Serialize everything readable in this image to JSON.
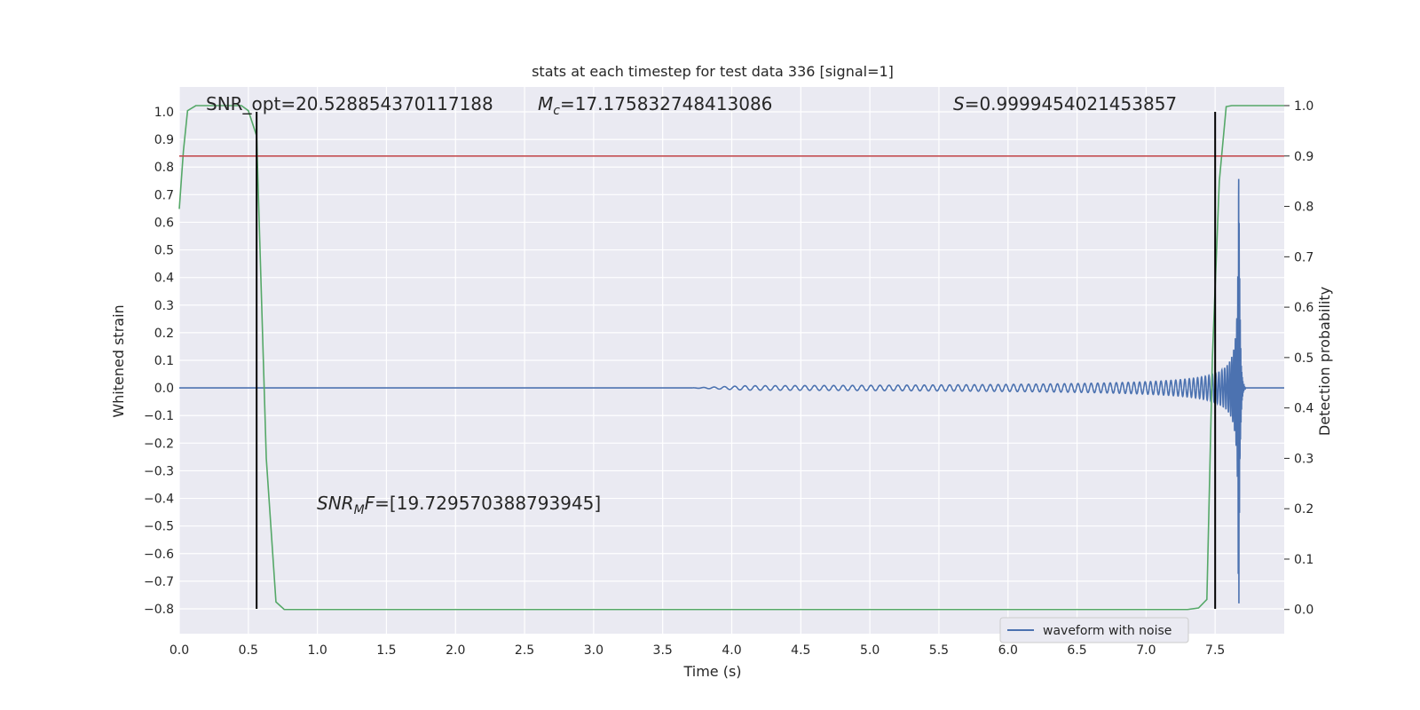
{
  "chart_data": {
    "type": "line",
    "title": "stats at each timestep for test data 336 [signal=1]",
    "xlabel": "Time (s)",
    "ylabel": "Whitened strain",
    "ylabel_right": "Detection probability",
    "xlim": [
      0.0,
      8.0
    ],
    "ylim": [
      -0.89,
      1.09
    ],
    "ylim_right": [
      -0.048,
      1.037
    ],
    "x_ticks": [
      "0.0",
      "0.5",
      "1.0",
      "1.5",
      "2.0",
      "2.5",
      "3.0",
      "3.5",
      "4.0",
      "4.5",
      "5.0",
      "5.5",
      "6.0",
      "6.5",
      "7.0",
      "7.5"
    ],
    "y_ticks": [
      "1.0",
      "0.9",
      "0.8",
      "0.7",
      "0.6",
      "0.5",
      "0.4",
      "0.3",
      "0.2",
      "0.1",
      "0.0",
      "−0.1",
      "−0.2",
      "−0.3",
      "−0.4",
      "−0.5",
      "−0.6",
      "−0.7",
      "−0.8"
    ],
    "y_ticks_right": [
      "1.0",
      "0.9",
      "0.8",
      "0.7",
      "0.6",
      "0.5",
      "0.4",
      "0.3",
      "0.2",
      "0.1",
      "0.0"
    ],
    "grid": true,
    "legend": {
      "position": "bottom-right",
      "entries": [
        "waveform with noise"
      ]
    },
    "annotations": {
      "snr_opt": "SNR_opt=20.528854370117188",
      "mc_symbol": "M",
      "mc_sub": "c",
      "mc_value": "=17.175832748413086",
      "s_symbol": "S",
      "s_value": "=0.9999454021453857",
      "snr_mf_symbol": "SNR",
      "snr_mf_sub": "M",
      "snr_mf_tail": "F",
      "snr_mf_value": "=[19.729570388793945]"
    },
    "series": [
      {
        "name": "waveform with noise",
        "axis": "left",
        "color": "#4c72b0",
        "model": "chirp",
        "chirp": {
          "t_start": 3.7,
          "t_merger": 7.67,
          "t_ringdown_end": 7.72,
          "peak_amp": 1.0
        }
      },
      {
        "axis": "right",
        "color": "#55a868",
        "x": [
          0.0,
          0.03,
          0.06,
          0.12,
          0.2,
          0.3,
          0.4,
          0.45,
          0.5,
          0.56,
          0.63,
          0.7,
          0.76,
          0.85,
          7.3,
          7.38,
          7.44,
          7.48,
          7.53,
          7.58,
          7.62,
          8.0
        ],
        "y": [
          0.795,
          0.91,
          0.99,
          1.0,
          1.0,
          1.0,
          1.0,
          1.0,
          0.99,
          0.94,
          0.3,
          0.015,
          0.0,
          0.0,
          0.0,
          0.003,
          0.02,
          0.5,
          0.85,
          0.998,
          1.0,
          1.0
        ]
      },
      {
        "axis": "right",
        "color": "#c44e52",
        "type": "hline",
        "y": 0.9
      },
      {
        "axis": "left",
        "color": "#000000",
        "type": "vlines",
        "x": [
          0.56,
          7.5
        ],
        "y_range": [
          -0.8,
          1.0
        ]
      }
    ]
  }
}
